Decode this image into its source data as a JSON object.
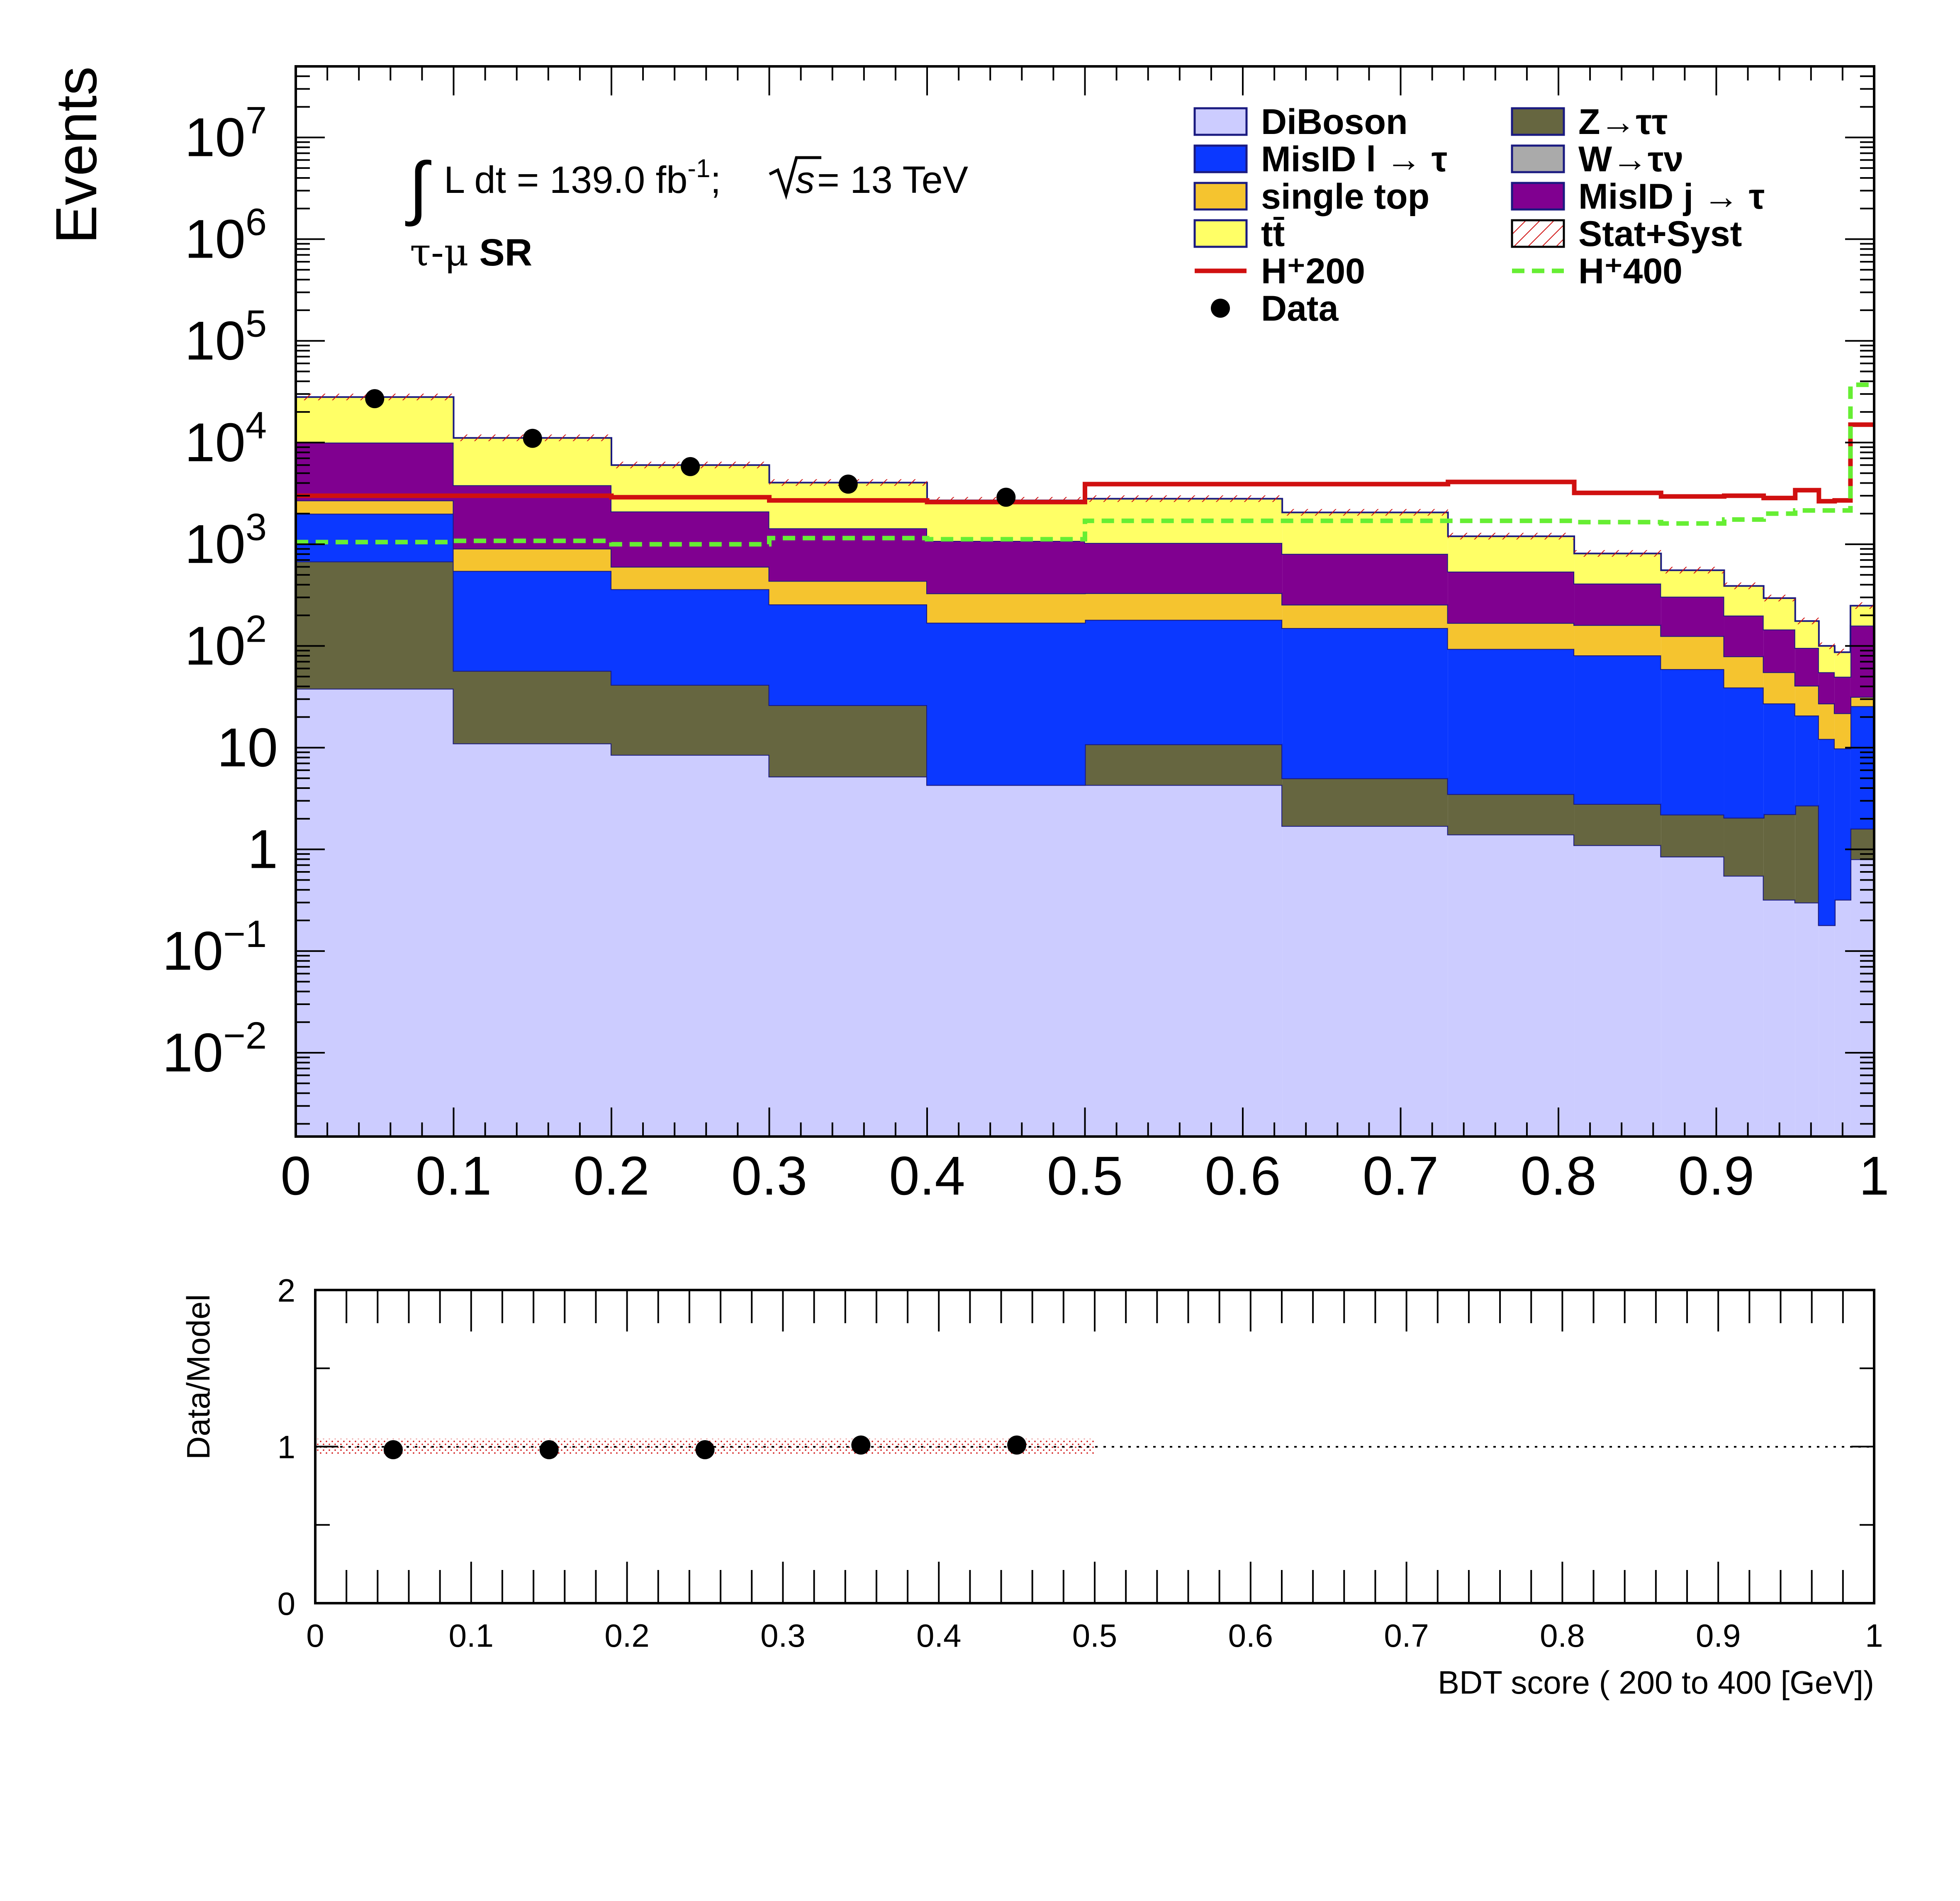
{
  "chart_data": [
    {
      "type": "bar",
      "stacked": true,
      "log_y": true,
      "ylabel": "Events",
      "ylim": [
        0.0015,
        50000000
      ],
      "xlim": [
        0,
        1
      ],
      "x_ticks": [
        "0",
        "0.1",
        "0.2",
        "0.3",
        "0.4",
        "0.5",
        "0.6",
        "0.7",
        "0.8",
        "0.9",
        "1"
      ],
      "y_ticks": [
        {
          "value": 0.01,
          "base": "10",
          "exp": "−2"
        },
        {
          "value": 0.1,
          "base": "10",
          "exp": "−1"
        },
        {
          "value": 1,
          "base": "1",
          "exp": ""
        },
        {
          "value": 10,
          "base": "10",
          "exp": ""
        },
        {
          "value": 100,
          "base": "10",
          "exp": "2"
        },
        {
          "value": 1000,
          "base": "10",
          "exp": "3"
        },
        {
          "value": 10000,
          "base": "10",
          "exp": "4"
        },
        {
          "value": 100000,
          "base": "10",
          "exp": "5"
        },
        {
          "value": 1000000,
          "base": "10",
          "exp": "6"
        },
        {
          "value": 10000000,
          "base": "10",
          "exp": "7"
        }
      ],
      "annotations": {
        "lumi_main": "L dt = 139.0 fb",
        "lumi_sup": "-1",
        "lumi_rest": ";",
        "sqrt_s": "s",
        "energy": " = 13 TeV",
        "region_prefix": "τ-μ",
        "region": "SR"
      },
      "grid": false,
      "legend_position": "top-right",
      "bin_edges": [
        0,
        0.1,
        0.2,
        0.3,
        0.4,
        0.5,
        0.625,
        0.73,
        0.81,
        0.865,
        0.905,
        0.93,
        0.95,
        0.965,
        0.975,
        0.985,
        1.0
      ],
      "series": [
        {
          "name": "DiBoson",
          "color": "#ccccff",
          "values": [
            38,
            11,
            8.5,
            5.2,
            4.3,
            4.3,
            1.7,
            1.4,
            1.1,
            0.85,
            0.55,
            0.32,
            0.3,
            0.18,
            0.32,
            0.8
          ]
        },
        {
          "name": "Z→ττ",
          "color": "#666640",
          "values": [
            640,
            46,
            33,
            21,
            0,
            6.5,
            3.3,
            2.1,
            1.7,
            1.35,
            1.5,
            1.9,
            2.4,
            0,
            0,
            0.8
          ]
        },
        {
          "name": "W→τν",
          "color": "#aaaaaa",
          "values": [
            0,
            0,
            0,
            0,
            0,
            0,
            0,
            0,
            0,
            0,
            0,
            0,
            0,
            0,
            0,
            0
          ]
        },
        {
          "name": "MisID l → τ",
          "color": "#0b38ff",
          "values": [
            1320,
            490,
            320,
            230,
            165,
            170,
            145,
            90,
            78,
            57,
            37,
            25,
            18,
            12,
            9.5,
            24
          ]
        },
        {
          "name": "single top",
          "color": "#f5c42f",
          "values": [
            700,
            360,
            240,
            180,
            160,
            150,
            105,
            75,
            80,
            66,
            40,
            28,
            20,
            15,
            12,
            6
          ]
        },
        {
          "name": "MisID j → τ",
          "color": "#800090",
          "values": [
            7300,
            2900,
            1500,
            1000,
            750,
            700,
            550,
            370,
            250,
            180,
            120,
            90,
            55,
            28,
            28,
            127
          ]
        },
        {
          "name": "tt̄",
          "color": "#ffff66",
          "values": [
            18000,
            7300,
            3900,
            2600,
            1620,
            1770,
            1250,
            660,
            400,
            250,
            190,
            150,
            80,
            45,
            37,
            90
          ]
        }
      ],
      "signals": [
        {
          "name": "H⁺200",
          "color": "#d01010",
          "style": "solid",
          "values": [
            3000,
            3000,
            2900,
            2700,
            2600,
            3900,
            3900,
            4100,
            3200,
            2950,
            3000,
            2850,
            3400,
            2650,
            2700,
            15000
          ]
        },
        {
          "name": "H⁺400",
          "color": "#66ee33",
          "style": "dashed",
          "values": [
            1050,
            1080,
            1000,
            1150,
            1120,
            1700,
            1700,
            1700,
            1650,
            1600,
            1750,
            2000,
            2150,
            2150,
            2150,
            37000
          ]
        }
      ],
      "data": {
        "name": "Data",
        "x": [
          0.05,
          0.15,
          0.25,
          0.35,
          0.45
        ],
        "y": [
          27000,
          11000,
          5800,
          3900,
          2900
        ]
      },
      "legend": [
        {
          "label": "DiBoson",
          "kind": "fill",
          "color": "#ccccff"
        },
        {
          "label": "Z→ττ",
          "kind": "fill",
          "color": "#666640"
        },
        {
          "label": "MisID l  →  τ",
          "kind": "fill",
          "color": "#0b38ff"
        },
        {
          "label": "W→τν",
          "kind": "fill",
          "color": "#aaaaaa"
        },
        {
          "label": "single top",
          "kind": "fill",
          "color": "#f5c42f"
        },
        {
          "label": "MisID j  →  τ",
          "kind": "fill",
          "color": "#800090"
        },
        {
          "label": "tt̄",
          "kind": "fill",
          "color": "#ffff66"
        },
        {
          "label": "Stat+Syst",
          "kind": "hatch",
          "color": "#d01010"
        },
        {
          "label": "H⁺200",
          "kind": "line",
          "color": "#d01010"
        },
        {
          "label": "H⁺400",
          "kind": "dash",
          "color": "#66ee33"
        },
        {
          "label": "Data",
          "kind": "marker",
          "color": "#000000"
        }
      ]
    },
    {
      "type": "scatter",
      "ylabel": "Data/Model",
      "xlabel": "BDT score ( 200 to 400 [GeV])",
      "xlim": [
        0,
        1
      ],
      "ylim": [
        0,
        2
      ],
      "x_ticks": [
        "0",
        "0.1",
        "0.2",
        "0.3",
        "0.4",
        "0.5",
        "0.6",
        "0.7",
        "0.8",
        "0.9",
        "1"
      ],
      "y_ticks": [
        "0",
        "1",
        "2"
      ],
      "reference_line": 1,
      "uncertainty_band": {
        "x_range": [
          0,
          0.5
        ],
        "half_width": 0.05,
        "color": "#d01010"
      },
      "x": [
        0.05,
        0.15,
        0.25,
        0.35,
        0.45
      ],
      "y": [
        0.98,
        0.98,
        0.98,
        1.01,
        1.01
      ]
    }
  ]
}
